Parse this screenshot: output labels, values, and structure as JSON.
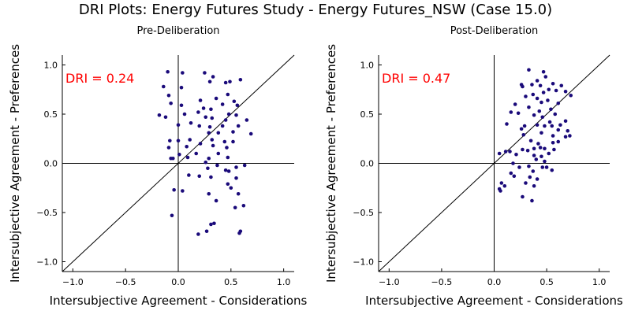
{
  "title": "DRI Plots: Energy Futures Study - Energy Futures_NSW (Case 15.0)",
  "colors": {
    "point": "#1a0a7a",
    "dri": "#ff0000",
    "axis": "#000000"
  },
  "chart_data": [
    {
      "type": "scatter",
      "title": "Pre-Deliberation",
      "xlabel": "Intersubjective Agreement - Considerations",
      "ylabel": "Intersubjective Agreement - Preferences",
      "xlim": [
        -1.1,
        1.1
      ],
      "ylim": [
        -1.1,
        1.1
      ],
      "xticks": [
        -1.0,
        -0.5,
        0.0,
        0.5,
        1.0
      ],
      "yticks": [
        -1.0,
        -0.5,
        0.0,
        0.5,
        1.0
      ],
      "tick_labels": [
        "−1.0",
        "−0.5",
        "0.0",
        "0.5",
        "1.0"
      ],
      "annotation": "DRI = 0.24",
      "grid": false,
      "points": [
        [
          -0.1,
          0.93
        ],
        [
          0.04,
          0.92
        ],
        [
          0.25,
          0.92
        ],
        [
          0.33,
          0.88
        ],
        [
          0.59,
          0.85
        ],
        [
          0.3,
          0.83
        ],
        [
          0.45,
          0.82
        ],
        [
          0.49,
          0.83
        ],
        [
          -0.14,
          0.78
        ],
        [
          0.03,
          0.77
        ],
        [
          -0.09,
          0.69
        ],
        [
          0.47,
          0.7
        ],
        [
          0.21,
          0.64
        ],
        [
          0.36,
          0.66
        ],
        [
          0.53,
          0.63
        ],
        [
          -0.07,
          0.61
        ],
        [
          0.03,
          0.59
        ],
        [
          0.42,
          0.6
        ],
        [
          0.56,
          0.59
        ],
        [
          0.24,
          0.56
        ],
        [
          0.31,
          0.55
        ],
        [
          0.06,
          0.5
        ],
        [
          0.19,
          0.52
        ],
        [
          0.48,
          0.5
        ],
        [
          0.55,
          0.49
        ],
        [
          -0.18,
          0.49
        ],
        [
          -0.12,
          0.47
        ],
        [
          0.26,
          0.47
        ],
        [
          0.32,
          0.46
        ],
        [
          0.45,
          0.44
        ],
        [
          0.65,
          0.44
        ],
        [
          0.12,
          0.41
        ],
        [
          0.0,
          0.39
        ],
        [
          0.2,
          0.38
        ],
        [
          0.3,
          0.37
        ],
        [
          0.42,
          0.38
        ],
        [
          0.57,
          0.38
        ],
        [
          0.38,
          0.31
        ],
        [
          0.29,
          0.31
        ],
        [
          0.52,
          0.32
        ],
        [
          0.69,
          0.3
        ],
        [
          -0.08,
          0.23
        ],
        [
          0.0,
          0.23
        ],
        [
          0.11,
          0.24
        ],
        [
          0.21,
          0.2
        ],
        [
          0.32,
          0.24
        ],
        [
          0.44,
          0.22
        ],
        [
          0.52,
          0.22
        ],
        [
          0.08,
          0.17
        ],
        [
          0.33,
          0.18
        ],
        [
          0.46,
          0.16
        ],
        [
          -0.09,
          0.16
        ],
        [
          0.01,
          0.09
        ],
        [
          0.17,
          0.1
        ],
        [
          0.38,
          0.1
        ],
        [
          -0.07,
          0.05
        ],
        [
          0.09,
          0.06
        ],
        [
          0.29,
          0.05
        ],
        [
          0.47,
          0.06
        ],
        [
          -0.05,
          0.05
        ],
        [
          0.26,
          0.01
        ],
        [
          0.37,
          -0.02
        ],
        [
          0.28,
          -0.05
        ],
        [
          0.45,
          -0.07
        ],
        [
          0.48,
          -0.08
        ],
        [
          0.55,
          -0.04
        ],
        [
          0.63,
          -0.02
        ],
        [
          0.1,
          -0.12
        ],
        [
          0.2,
          -0.13
        ],
        [
          0.31,
          -0.14
        ],
        [
          0.55,
          -0.15
        ],
        [
          0.47,
          -0.21
        ],
        [
          0.5,
          -0.25
        ],
        [
          -0.04,
          -0.27
        ],
        [
          0.04,
          -0.28
        ],
        [
          0.29,
          -0.31
        ],
        [
          0.57,
          -0.31
        ],
        [
          0.36,
          -0.38
        ],
        [
          0.62,
          -0.43
        ],
        [
          0.54,
          -0.45
        ],
        [
          -0.06,
          -0.53
        ],
        [
          0.34,
          -0.61
        ],
        [
          0.31,
          -0.62
        ],
        [
          0.27,
          -0.69
        ],
        [
          0.59,
          -0.69
        ],
        [
          0.19,
          -0.72
        ],
        [
          0.58,
          -0.71
        ]
      ]
    },
    {
      "type": "scatter",
      "title": "Post-Deliberation",
      "xlabel": "Intersubjective Agreement - Considerations",
      "ylabel": "Intersubjective Agreement - Preferences",
      "xlim": [
        -1.1,
        1.1
      ],
      "ylim": [
        -1.1,
        1.1
      ],
      "xticks": [
        -1.0,
        -0.5,
        0.0,
        0.5,
        1.0
      ],
      "yticks": [
        -1.0,
        -0.5,
        0.0,
        0.5,
        1.0
      ],
      "tick_labels": [
        "−1.0",
        "−0.5",
        "0.0",
        "0.5",
        "1.0"
      ],
      "annotation": "DRI = 0.47",
      "grid": false,
      "points": [
        [
          0.33,
          0.95
        ],
        [
          0.47,
          0.93
        ],
        [
          0.49,
          0.88
        ],
        [
          0.41,
          0.84
        ],
        [
          0.36,
          0.8
        ],
        [
          0.26,
          0.8
        ],
        [
          0.27,
          0.78
        ],
        [
          0.44,
          0.79
        ],
        [
          0.56,
          0.81
        ],
        [
          0.64,
          0.79
        ],
        [
          0.52,
          0.75
        ],
        [
          0.59,
          0.74
        ],
        [
          0.68,
          0.73
        ],
        [
          0.47,
          0.72
        ],
        [
          0.37,
          0.7
        ],
        [
          0.73,
          0.69
        ],
        [
          0.3,
          0.68
        ],
        [
          0.41,
          0.66
        ],
        [
          0.51,
          0.64
        ],
        [
          0.45,
          0.62
        ],
        [
          0.2,
          0.6
        ],
        [
          0.61,
          0.61
        ],
        [
          0.33,
          0.57
        ],
        [
          0.54,
          0.55
        ],
        [
          0.43,
          0.53
        ],
        [
          0.16,
          0.52
        ],
        [
          0.23,
          0.51
        ],
        [
          0.58,
          0.5
        ],
        [
          0.38,
          0.49
        ],
        [
          0.46,
          0.47
        ],
        [
          0.68,
          0.43
        ],
        [
          0.53,
          0.42
        ],
        [
          0.12,
          0.4
        ],
        [
          0.29,
          0.38
        ],
        [
          0.41,
          0.39
        ],
        [
          0.48,
          0.38
        ],
        [
          0.55,
          0.38
        ],
        [
          0.63,
          0.39
        ],
        [
          0.26,
          0.35
        ],
        [
          0.61,
          0.34
        ],
        [
          0.7,
          0.33
        ],
        [
          0.45,
          0.31
        ],
        [
          0.28,
          0.29
        ],
        [
          0.56,
          0.28
        ],
        [
          0.68,
          0.27
        ],
        [
          0.72,
          0.28
        ],
        [
          0.35,
          0.23
        ],
        [
          0.42,
          0.2
        ],
        [
          0.56,
          0.21
        ],
        [
          0.61,
          0.22
        ],
        [
          0.44,
          0.16
        ],
        [
          0.48,
          0.15
        ],
        [
          0.38,
          0.15
        ],
        [
          0.32,
          0.13
        ],
        [
          0.27,
          0.14
        ],
        [
          0.57,
          0.14
        ],
        [
          0.15,
          0.12
        ],
        [
          0.11,
          0.12
        ],
        [
          0.21,
          0.09
        ],
        [
          0.52,
          0.1
        ],
        [
          0.38,
          0.08
        ],
        [
          0.45,
          0.07
        ],
        [
          0.05,
          0.1
        ],
        [
          0.4,
          0.04
        ],
        [
          0.18,
          0.0
        ],
        [
          0.48,
          0.02
        ],
        [
          0.24,
          -0.04
        ],
        [
          0.33,
          -0.03
        ],
        [
          0.46,
          -0.04
        ],
        [
          0.5,
          -0.04
        ],
        [
          0.55,
          -0.07
        ],
        [
          0.37,
          -0.08
        ],
        [
          0.16,
          -0.1
        ],
        [
          0.19,
          -0.13
        ],
        [
          0.34,
          -0.14
        ],
        [
          0.41,
          -0.16
        ],
        [
          0.07,
          -0.2
        ],
        [
          0.3,
          -0.2
        ],
        [
          0.38,
          -0.23
        ],
        [
          0.05,
          -0.26
        ],
        [
          0.1,
          -0.23
        ],
        [
          0.06,
          -0.28
        ],
        [
          0.27,
          -0.34
        ],
        [
          0.36,
          -0.38
        ]
      ]
    }
  ]
}
